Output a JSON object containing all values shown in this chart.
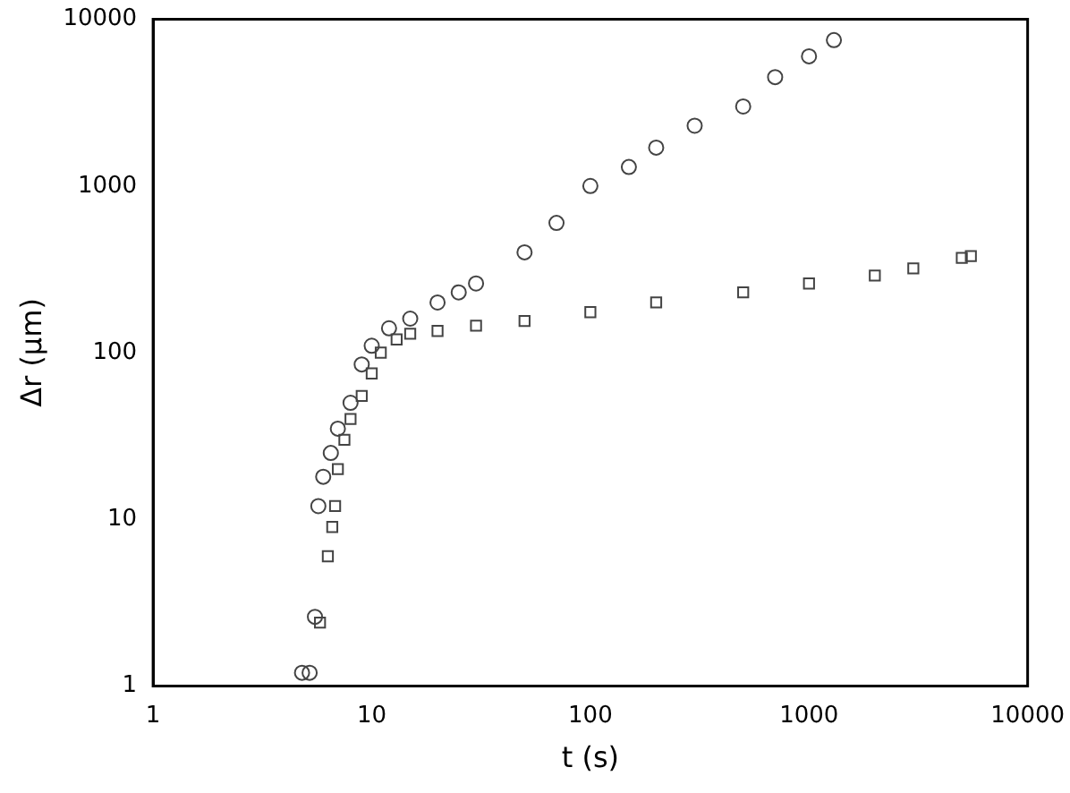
{
  "chart_data": {
    "type": "scatter",
    "xlabel": "t (s)",
    "ylabel": "Δr (μm)",
    "log": "xy",
    "xlim": [
      1,
      10000
    ],
    "ylim": [
      1,
      10000
    ],
    "xticks": [
      1,
      10,
      100,
      1000,
      10000
    ],
    "yticks": [
      1,
      10,
      100,
      1000,
      10000
    ],
    "grid": false,
    "legend": false,
    "series": [
      {
        "color": "#444444",
        "marker": "square",
        "x": [
          5.8,
          6.3,
          6.6,
          6.8,
          7,
          7.5,
          8,
          9,
          10,
          11,
          13,
          15,
          20,
          30,
          50,
          100,
          200,
          500,
          1000,
          2000,
          3000,
          5000,
          5500
        ],
        "values": [
          2.4,
          6,
          9,
          12,
          20,
          30,
          40,
          55,
          75,
          100,
          120,
          130,
          135,
          145,
          155,
          175,
          200,
          230,
          260,
          290,
          320,
          370,
          380
        ]
      },
      {
        "color": "#444444",
        "marker": "circle",
        "x": [
          4.8,
          5.2,
          5.5,
          5.7,
          6,
          6.5,
          7,
          8,
          9,
          10,
          12,
          15,
          20,
          25,
          30,
          50,
          70,
          100,
          150,
          200,
          300,
          500,
          700,
          1000,
          1300
        ],
        "values": [
          1.2,
          1.2,
          2.6,
          12,
          18,
          25,
          35,
          50,
          85,
          110,
          140,
          160,
          200,
          230,
          260,
          400,
          600,
          1000,
          1300,
          1700,
          2300,
          3000,
          4500,
          6000,
          7500
        ]
      }
    ]
  }
}
